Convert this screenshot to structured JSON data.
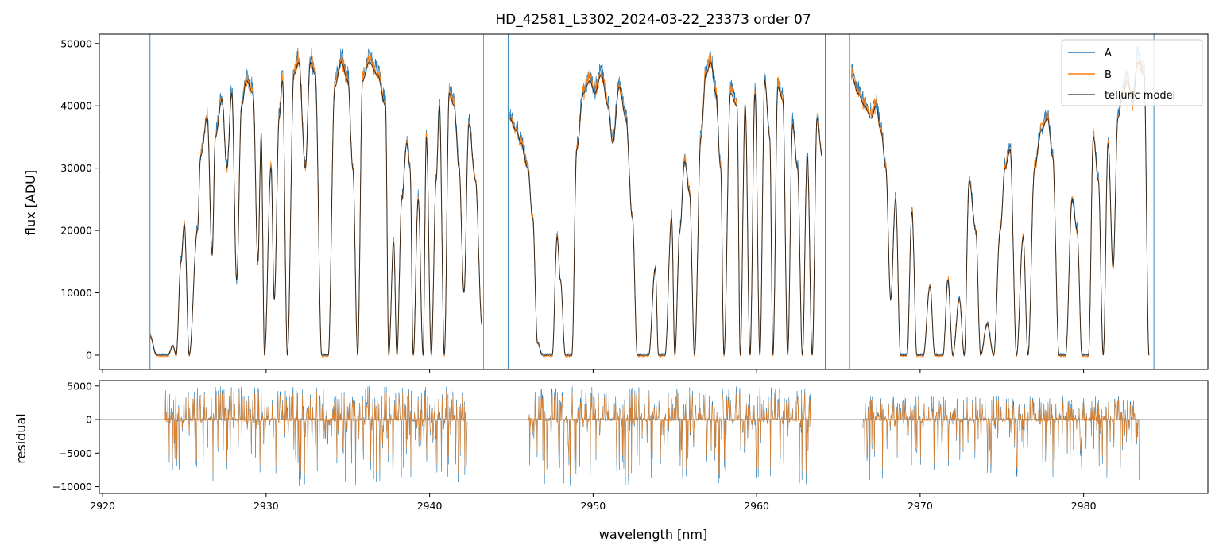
{
  "chart_data": [
    {
      "type": "line",
      "title": "HD_42581_L3302_2024-03-22_23373  order 07",
      "xlabel": "",
      "ylabel": "flux [ADU]",
      "xlim": [
        2919.8,
        2987.6
      ],
      "ylim": [
        -2300,
        51500
      ],
      "yticks": [
        0,
        10000,
        20000,
        30000,
        40000,
        50000
      ],
      "ytick_labels": [
        "0",
        "10000",
        "20000",
        "30000",
        "40000",
        "50000"
      ],
      "grid": false,
      "legend_position": "top-right",
      "legend": [
        "A",
        "B",
        "telluric model"
      ],
      "vertical_lines": [
        {
          "series": "A",
          "x": 2922.9
        },
        {
          "series": "A",
          "x": 2943.3
        },
        {
          "series": "A",
          "x": 2944.8
        },
        {
          "series": "A",
          "x": 2964.2
        },
        {
          "series": "A",
          "x": 2984.3
        },
        {
          "series": "B",
          "x": 2943.3
        },
        {
          "series": "B",
          "x": 2965.7
        }
      ],
      "telluric_model_points": [
        [
          2922.9,
          3000
        ],
        [
          2923.3,
          0
        ],
        [
          2924.0,
          0
        ],
        [
          2924.3,
          1500
        ],
        [
          2924.5,
          0
        ],
        [
          2924.8,
          15000
        ],
        [
          2925.0,
          21000
        ],
        [
          2925.3,
          0
        ],
        [
          2925.8,
          20000
        ],
        [
          2926.0,
          32000
        ],
        [
          2926.4,
          38000
        ],
        [
          2926.7,
          16000
        ],
        [
          2926.9,
          35000
        ],
        [
          2927.3,
          41000
        ],
        [
          2927.6,
          30000
        ],
        [
          2927.9,
          42000
        ],
        [
          2928.2,
          12000
        ],
        [
          2928.5,
          40000
        ],
        [
          2928.8,
          44000
        ],
        [
          2929.2,
          42000
        ],
        [
          2929.5,
          15000
        ],
        [
          2929.7,
          35000
        ],
        [
          2929.9,
          0
        ],
        [
          2930.3,
          30000
        ],
        [
          2930.5,
          9000
        ],
        [
          2930.8,
          38000
        ],
        [
          2931.0,
          44000
        ],
        [
          2931.3,
          0
        ],
        [
          2931.7,
          45000
        ],
        [
          2932.0,
          47000
        ],
        [
          2932.4,
          30000
        ],
        [
          2932.7,
          47000
        ],
        [
          2933.0,
          45000
        ],
        [
          2933.4,
          0
        ],
        [
          2933.8,
          0
        ],
        [
          2934.2,
          43000
        ],
        [
          2934.6,
          47000
        ],
        [
          2935.0,
          44000
        ],
        [
          2935.3,
          30000
        ],
        [
          2935.6,
          0
        ],
        [
          2935.9,
          44000
        ],
        [
          2936.3,
          47000
        ],
        [
          2936.8,
          45000
        ],
        [
          2937.3,
          40000
        ],
        [
          2937.5,
          0
        ],
        [
          2937.8,
          18000
        ],
        [
          2938.0,
          0
        ],
        [
          2938.3,
          25000
        ],
        [
          2938.6,
          34000
        ],
        [
          2938.8,
          30000
        ],
        [
          2939.0,
          0
        ],
        [
          2939.3,
          25000
        ],
        [
          2939.6,
          0
        ],
        [
          2939.8,
          35000
        ],
        [
          2940.1,
          0
        ],
        [
          2940.4,
          28000
        ],
        [
          2940.6,
          40000
        ],
        [
          2940.9,
          0
        ],
        [
          2941.2,
          42000
        ],
        [
          2941.5,
          40000
        ],
        [
          2941.8,
          30000
        ],
        [
          2942.1,
          10000
        ],
        [
          2942.4,
          37000
        ],
        [
          2942.8,
          28000
        ],
        [
          2943.2,
          5000
        ],
        [
          2944.9,
          38000
        ],
        [
          2945.3,
          36000
        ],
        [
          2945.6,
          34000
        ],
        [
          2946.0,
          30000
        ],
        [
          2946.3,
          22000
        ],
        [
          2946.6,
          2000
        ],
        [
          2946.9,
          0
        ],
        [
          2947.5,
          0
        ],
        [
          2947.8,
          19000
        ],
        [
          2948.0,
          12000
        ],
        [
          2948.3,
          0
        ],
        [
          2948.7,
          0
        ],
        [
          2949.0,
          33000
        ],
        [
          2949.4,
          42000
        ],
        [
          2949.8,
          44000
        ],
        [
          2950.1,
          42000
        ],
        [
          2950.5,
          45000
        ],
        [
          2950.9,
          40000
        ],
        [
          2951.2,
          34000
        ],
        [
          2951.6,
          43000
        ],
        [
          2952.0,
          38000
        ],
        [
          2952.4,
          22000
        ],
        [
          2952.7,
          0
        ],
        [
          2953.4,
          0
        ],
        [
          2953.8,
          14000
        ],
        [
          2954.0,
          0
        ],
        [
          2954.4,
          0
        ],
        [
          2954.8,
          22000
        ],
        [
          2955.0,
          0
        ],
        [
          2955.3,
          20000
        ],
        [
          2955.6,
          31000
        ],
        [
          2955.9,
          26000
        ],
        [
          2956.2,
          0
        ],
        [
          2956.6,
          35000
        ],
        [
          2956.9,
          45000
        ],
        [
          2957.2,
          47000
        ],
        [
          2957.5,
          42000
        ],
        [
          2957.8,
          30000
        ],
        [
          2958.0,
          0
        ],
        [
          2958.4,
          42000
        ],
        [
          2958.8,
          40000
        ],
        [
          2959.0,
          0
        ],
        [
          2959.3,
          40000
        ],
        [
          2959.6,
          0
        ],
        [
          2959.9,
          42000
        ],
        [
          2960.2,
          0
        ],
        [
          2960.5,
          44000
        ],
        [
          2960.8,
          35000
        ],
        [
          2961.0,
          0
        ],
        [
          2961.3,
          43000
        ],
        [
          2961.6,
          41000
        ],
        [
          2961.9,
          0
        ],
        [
          2962.2,
          37000
        ],
        [
          2962.5,
          30000
        ],
        [
          2962.8,
          0
        ],
        [
          2963.1,
          32000
        ],
        [
          2963.4,
          0
        ],
        [
          2963.7,
          38000
        ],
        [
          2964.0,
          32000
        ],
        [
          2965.8,
          45000
        ],
        [
          2966.2,
          42000
        ],
        [
          2966.6,
          40000
        ],
        [
          2967.0,
          38000
        ],
        [
          2967.3,
          40000
        ],
        [
          2967.6,
          36000
        ],
        [
          2967.9,
          30000
        ],
        [
          2968.2,
          9000
        ],
        [
          2968.5,
          25000
        ],
        [
          2968.8,
          0
        ],
        [
          2969.2,
          0
        ],
        [
          2969.5,
          23000
        ],
        [
          2969.8,
          0
        ],
        [
          2970.2,
          0
        ],
        [
          2970.6,
          11000
        ],
        [
          2970.9,
          0
        ],
        [
          2971.4,
          0
        ],
        [
          2971.7,
          12000
        ],
        [
          2972.0,
          0
        ],
        [
          2972.4,
          9000
        ],
        [
          2972.7,
          0
        ],
        [
          2973.0,
          28000
        ],
        [
          2973.4,
          20000
        ],
        [
          2973.7,
          0
        ],
        [
          2974.1,
          5000
        ],
        [
          2974.5,
          0
        ],
        [
          2974.9,
          20000
        ],
        [
          2975.2,
          30000
        ],
        [
          2975.5,
          33000
        ],
        [
          2975.9,
          0
        ],
        [
          2976.3,
          19000
        ],
        [
          2976.6,
          0
        ],
        [
          2977.0,
          30000
        ],
        [
          2977.4,
          36000
        ],
        [
          2977.8,
          38000
        ],
        [
          2978.1,
          32000
        ],
        [
          2978.5,
          0
        ],
        [
          2978.9,
          0
        ],
        [
          2979.3,
          25000
        ],
        [
          2979.6,
          20000
        ],
        [
          2979.9,
          0
        ],
        [
          2980.3,
          0
        ],
        [
          2980.6,
          35000
        ],
        [
          2980.9,
          28000
        ],
        [
          2981.2,
          0
        ],
        [
          2981.5,
          34000
        ],
        [
          2981.8,
          14000
        ],
        [
          2982.1,
          38000
        ],
        [
          2982.4,
          42000
        ],
        [
          2982.7,
          44000
        ],
        [
          2983.0,
          40000
        ],
        [
          2983.3,
          47000
        ],
        [
          2983.7,
          45000
        ],
        [
          2984.0,
          0
        ]
      ]
    },
    {
      "type": "line",
      "title": "",
      "xlabel": "wavelength [nm]",
      "ylabel": "residual",
      "xlim": [
        2919.8,
        2987.6
      ],
      "ylim": [
        -11000,
        5800
      ],
      "xticks": [
        2920,
        2930,
        2940,
        2950,
        2960,
        2970,
        2980
      ],
      "xtick_labels": [
        "2920",
        "2930",
        "2940",
        "2950",
        "2960",
        "2970",
        "2980"
      ],
      "yticks": [
        -10000,
        -5000,
        0,
        5000
      ],
      "ytick_labels": [
        "−10000",
        "−5000",
        "0",
        "5000"
      ],
      "grid": false,
      "horizontal_line": 0,
      "segments": [
        {
          "x_start": 2923.8,
          "x_end": 2942.3,
          "amplitude_up": 5000,
          "amplitude_down": -10000
        },
        {
          "x_start": 2946.0,
          "x_end": 2963.3,
          "amplitude_up": 5000,
          "amplitude_down": -10000
        },
        {
          "x_start": 2966.5,
          "x_end": 2983.4,
          "amplitude_up": 3500,
          "amplitude_down": -9000
        }
      ]
    }
  ],
  "series_colors": {
    "A": "#1f77b4",
    "B": "#ff7f0e",
    "telluric model": "#000000"
  }
}
